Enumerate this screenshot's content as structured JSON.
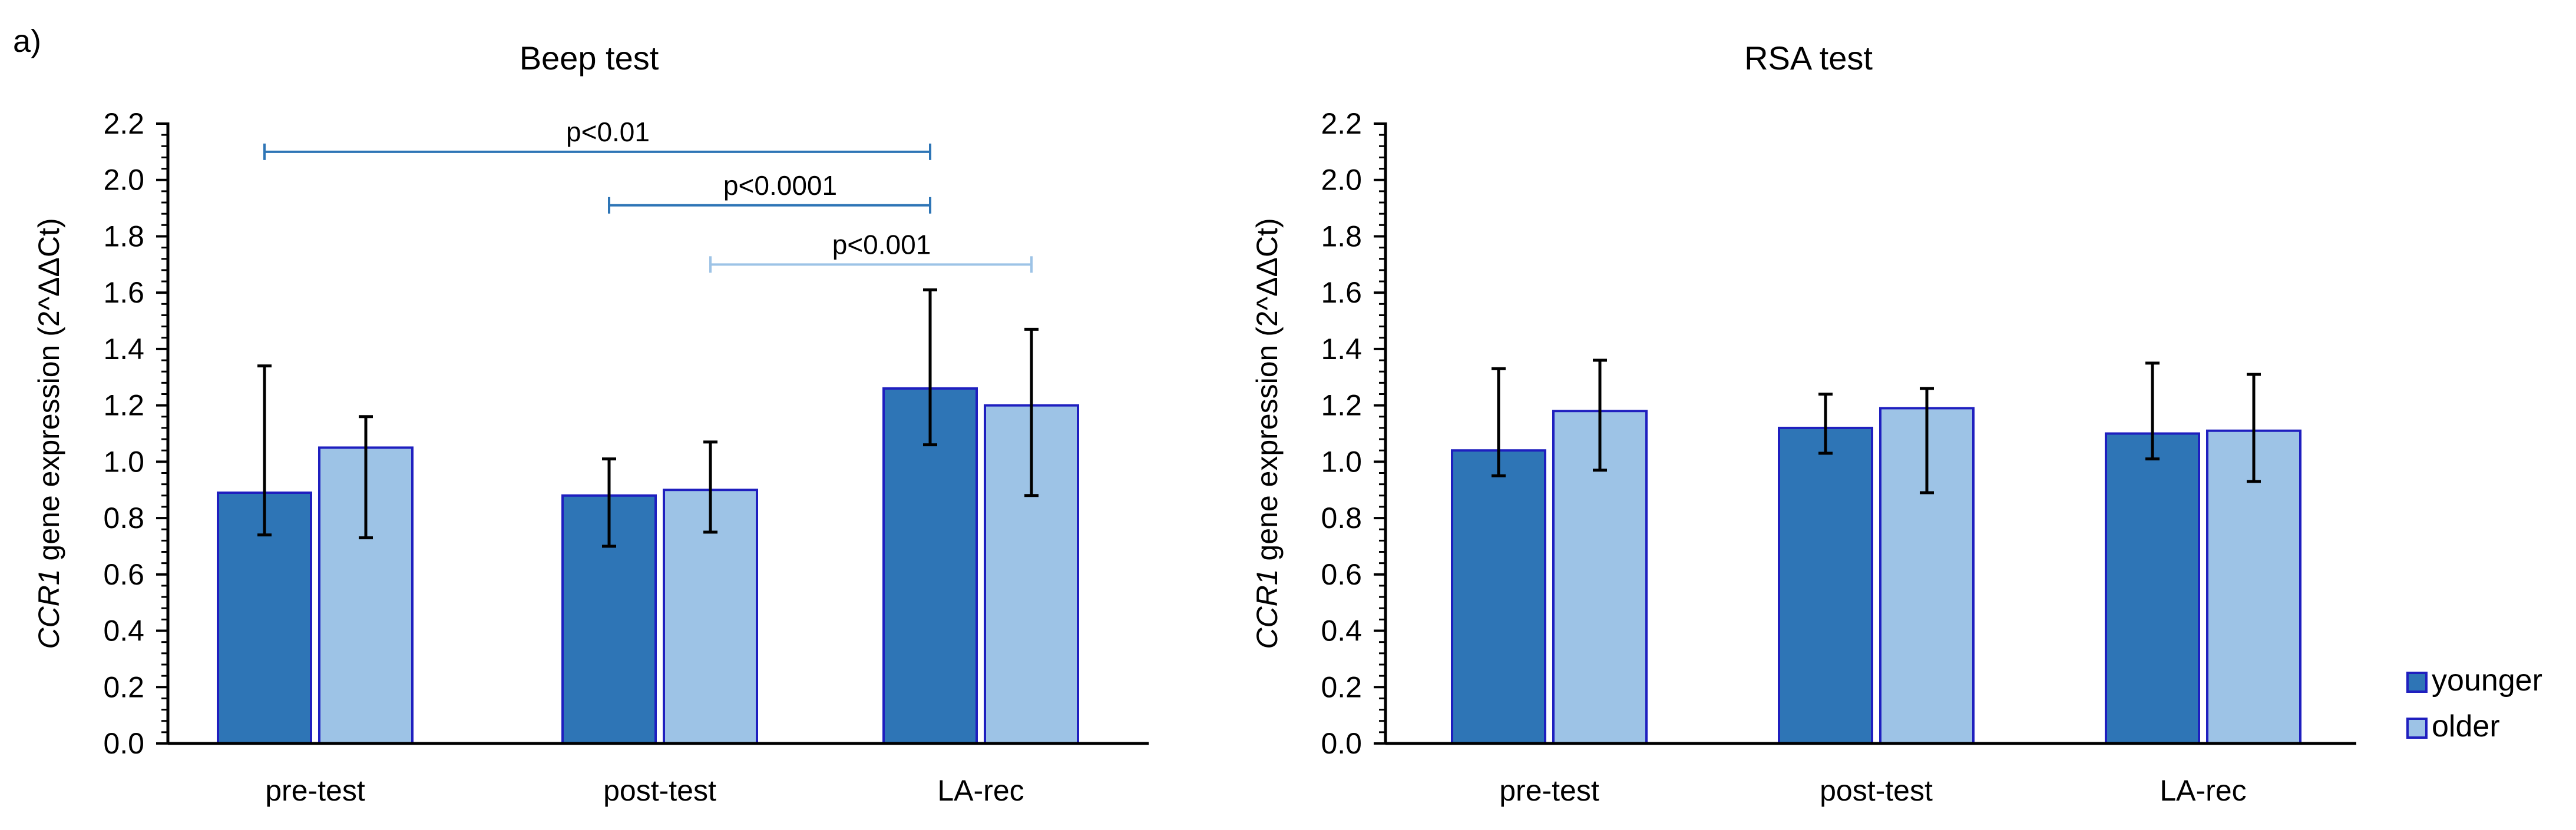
{
  "panel_label": "a)",
  "colors": {
    "younger": "#2e75b6",
    "older": "#9dc3e6",
    "bar_edge": "#1f1fbf",
    "axis": "#000000",
    "bracket_dark": "#2e75b6",
    "bracket_light": "#9dc3e6"
  },
  "chart_data": [
    {
      "type": "bar",
      "title": "Beep test",
      "xlabel": "",
      "ylabel_italic": "CCR1",
      "ylabel_rest": " gene expression (2^ΔΔCt)",
      "ylim": [
        0,
        2.2
      ],
      "yticks": [
        "0.0",
        "0.2",
        "0.4",
        "0.6",
        "0.8",
        "1.0",
        "1.2",
        "1.4",
        "1.6",
        "1.8",
        "2.0",
        "2.2"
      ],
      "categories": [
        "pre-test",
        "post-test",
        "LA-rec"
      ],
      "series": [
        {
          "name": "younger",
          "values": [
            0.89,
            0.88,
            1.26
          ],
          "err_low": [
            0.74,
            0.7,
            1.06
          ],
          "err_high": [
            1.34,
            1.01,
            1.61
          ]
        },
        {
          "name": "older",
          "values": [
            1.05,
            0.9,
            1.2
          ],
          "err_low": [
            0.73,
            0.75,
            0.88
          ],
          "err_high": [
            1.16,
            1.07,
            1.47
          ]
        }
      ],
      "annotations": [
        {
          "label": "p<0.01",
          "from": [
            0,
            "younger"
          ],
          "to": [
            2,
            "younger"
          ],
          "y": 2.1,
          "shade": "dark"
        },
        {
          "label": "p<0.0001",
          "from": [
            1,
            "younger"
          ],
          "to": [
            2,
            "younger"
          ],
          "y": 1.91,
          "shade": "dark"
        },
        {
          "label": "p<0.001",
          "from": [
            1,
            "older"
          ],
          "to": [
            2,
            "older"
          ],
          "y": 1.7,
          "shade": "light"
        }
      ]
    },
    {
      "type": "bar",
      "title": "RSA test",
      "xlabel": "",
      "ylabel_italic": "CCR1",
      "ylabel_rest": " gene expression (2^ΔΔCt)",
      "ylim": [
        0,
        2.2
      ],
      "yticks": [
        "0.0",
        "0.2",
        "0.4",
        "0.6",
        "0.8",
        "1.0",
        "1.2",
        "1.4",
        "1.6",
        "1.8",
        "2.0",
        "2.2"
      ],
      "categories": [
        "pre-test",
        "post-test",
        "LA-rec"
      ],
      "series": [
        {
          "name": "younger",
          "values": [
            1.04,
            1.12,
            1.1
          ],
          "err_low": [
            0.95,
            1.03,
            1.01
          ],
          "err_high": [
            1.33,
            1.24,
            1.35
          ]
        },
        {
          "name": "older",
          "values": [
            1.18,
            1.19,
            1.11
          ],
          "err_low": [
            0.97,
            0.89,
            0.93
          ],
          "err_high": [
            1.36,
            1.26,
            1.31
          ]
        }
      ],
      "annotations": [],
      "legend": {
        "position": "bottom-right",
        "entries": [
          "younger",
          "older"
        ]
      }
    }
  ]
}
